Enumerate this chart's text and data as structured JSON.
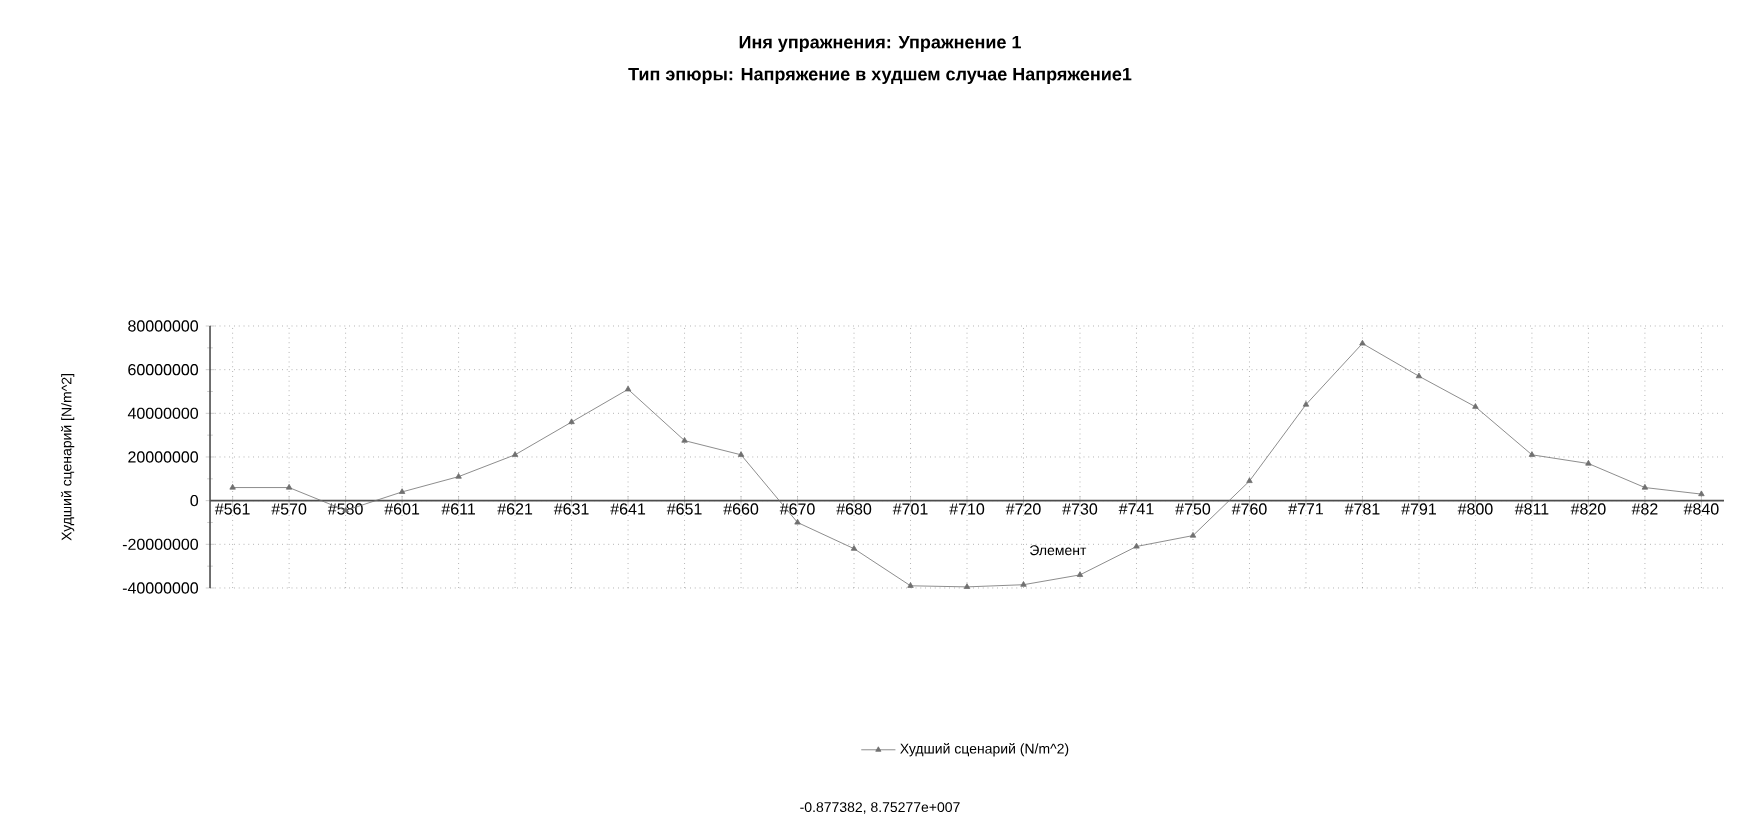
{
  "chart_data": {
    "type": "line",
    "title": "Иня упражнения: Упражнение 1",
    "subtitle": "Тип эпюры: Напряжение в худшем случае Напряжение1",
    "xlabel": "Элемент",
    "ylabel": "Худший сценарий [N/m^2]",
    "categories": [
      "#561",
      "#570",
      "#580",
      "#601",
      "#611",
      "#621",
      "#631",
      "#641",
      "#651",
      "#660",
      "#670",
      "#680",
      "#701",
      "#710",
      "#720",
      "#730",
      "#741",
      "#750",
      "#760",
      "#771",
      "#781",
      "#791",
      "#800",
      "#811",
      "#820",
      "#82",
      "#840"
    ],
    "series": [
      {
        "name": "Худший сценарий (N/m^2)",
        "color": "#707070",
        "values": [
          6000000,
          6000000,
          -4500000,
          4000000,
          11000000,
          21000000,
          36000000,
          51000000,
          27500000,
          21000000,
          -10000000,
          -22000000,
          -39000000,
          -39500000,
          -38500000,
          -34000000,
          -21000000,
          -16000000,
          9000000,
          44000000,
          72000000,
          57000000,
          43000000,
          21000000,
          17000000,
          6000000,
          3000000
        ]
      }
    ],
    "ylim": [
      -40000000,
      80000000
    ],
    "yticks": [
      -40000000,
      -20000000,
      0,
      20000000,
      40000000,
      60000000,
      80000000
    ],
    "grid": true,
    "legend": "bottom",
    "marker": "triangle",
    "line_style": "solid",
    "annotations": [
      "-0.877382, 8.75277e+007"
    ]
  }
}
